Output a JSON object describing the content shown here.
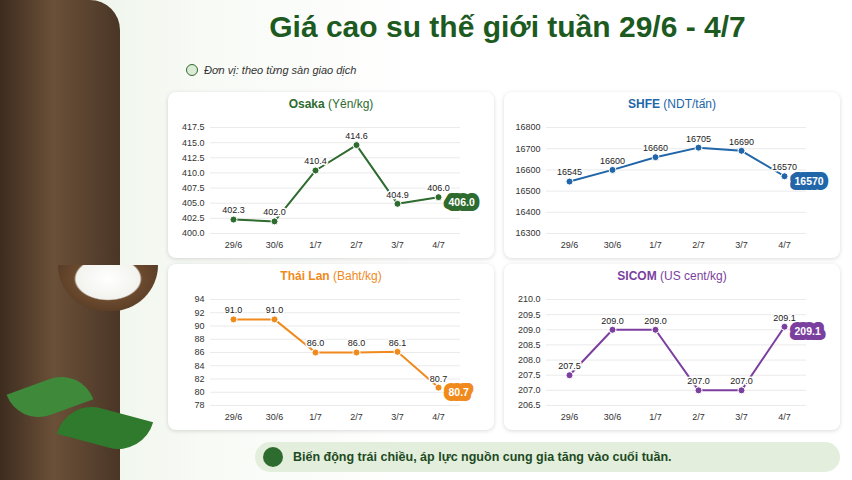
{
  "title": "Giá cao su thế giới tuần 29/6 - 4/7",
  "subtitle": "Đơn vị: theo từng sàn giao dịch",
  "caption": "Biến động trái chiều, áp lực nguồn cung gia tăng vào cuối tuần.",
  "chart_data": [
    {
      "type": "line",
      "title": "Osaka (Yên/kg)",
      "categories": [
        "29/6",
        "30/6",
        "1/7",
        "2/7",
        "3/7",
        "4/7"
      ],
      "values": [
        402.3,
        402.0,
        410.4,
        414.6,
        404.9,
        406.0
      ],
      "value_labels": [
        "402.3",
        "402.0",
        "410.4",
        "414.6",
        "404.9",
        "406.0"
      ],
      "color": "#2e6b2e",
      "marker": "circle",
      "line_style": "solid",
      "ylim": [
        400,
        417.5
      ],
      "yticks": [
        {
          "value": 400,
          "label": "400.0"
        },
        402.5,
        {
          "value": 405,
          "label": "405.0"
        },
        407.5,
        {
          "value": 410,
          "label": "410.0"
        },
        412.5,
        {
          "value": 415,
          "label": "415.0"
        },
        417.5
      ],
      "grid": true,
      "data_labels": true
    },
    {
      "type": "line",
      "title": "SHFE (NDT/tấn)",
      "categories": [
        "29/6",
        "30/6",
        "1/7",
        "2/7",
        "3/7",
        "4/7"
      ],
      "values": [
        16545,
        16600,
        16660,
        16705,
        16690,
        16570
      ],
      "color": "#2166a8",
      "marker": "circle",
      "line_style": "solid",
      "ylim": [
        16300,
        16800
      ],
      "yticks": [
        16300,
        16400,
        16500,
        16600,
        16700,
        16800
      ],
      "grid": true,
      "data_labels": true
    },
    {
      "type": "line",
      "title": "Thái Lan (Baht/kg)",
      "categories": [
        "29/6",
        "30/6",
        "1/7",
        "2/7",
        "3/7",
        "4/7"
      ],
      "values": [
        91.0,
        91.0,
        86.0,
        86.0,
        86.1,
        80.7
      ],
      "value_labels": [
        "91.0",
        "91.0",
        "86.0",
        "86.0",
        "86.1",
        "80.7"
      ],
      "color": "#f08a1c",
      "marker": "circle",
      "line_style": "solid",
      "ylim": [
        78,
        94
      ],
      "yticks": [
        78,
        80,
        82,
        84,
        86,
        88,
        90,
        92,
        94
      ],
      "grid": true,
      "data_labels": true
    },
    {
      "type": "line",
      "title": "SICOM (US cent/kg)",
      "categories": [
        "29/6",
        "30/6",
        "1/7",
        "2/7",
        "3/7",
        "4/7"
      ],
      "values": [
        207.5,
        209.0,
        209.0,
        207.0,
        207.0,
        209.1
      ],
      "value_labels": [
        "207.5",
        "209.0",
        "209.0",
        "207.0",
        "207.0",
        "209.1"
      ],
      "color": "#7b3fa0",
      "marker": "circle",
      "line_style": "solid",
      "ylim": [
        206.5,
        210
      ],
      "yticks": [
        206.5,
        {
          "value": 207,
          "label": "207.0"
        },
        207.5,
        {
          "value": 208,
          "label": "208.0"
        },
        208.5,
        {
          "value": 209,
          "label": "209.0"
        },
        209.5,
        {
          "value": 210,
          "label": "210.0"
        }
      ],
      "grid": true,
      "data_labels": true
    }
  ]
}
